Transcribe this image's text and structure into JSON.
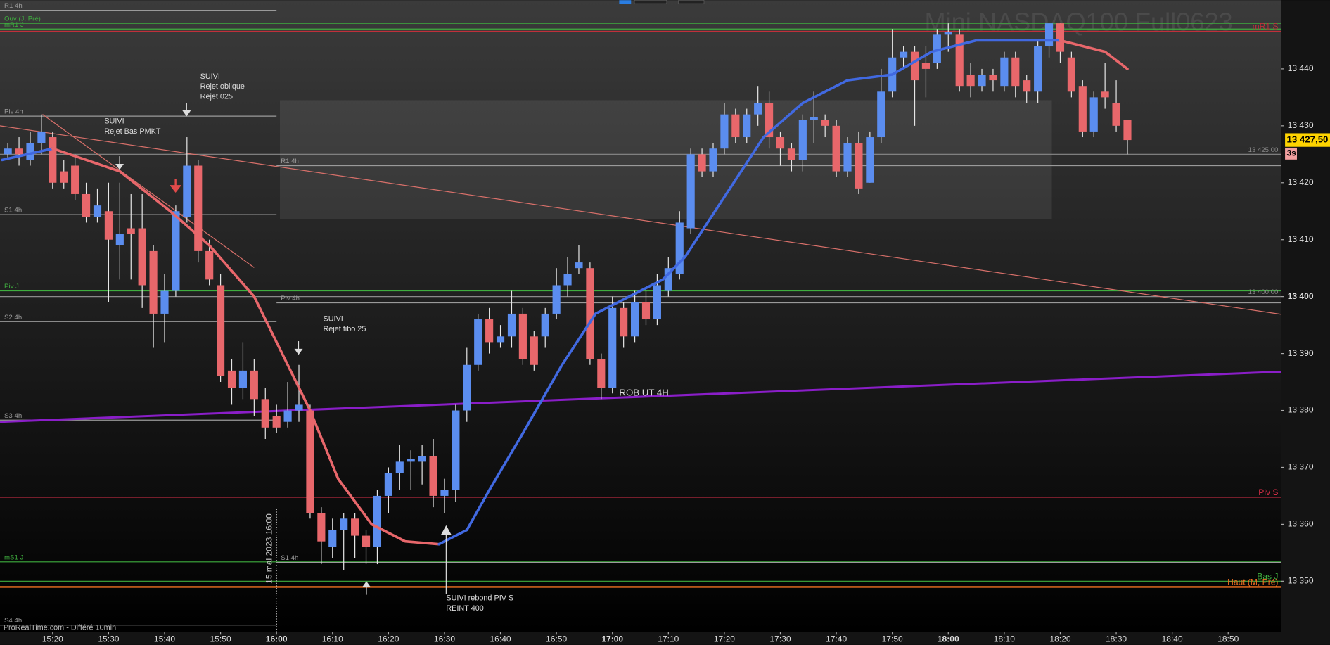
{
  "chart_data": {
    "type": "candlestick",
    "title": "Mini NASDAQ100 Full0623",
    "source": "ProRealTime.com - Différé 10min",
    "up_color": "#5b8def",
    "down_color": "#e8676b",
    "xlim": [
      910.6,
      1139.4
    ],
    "ylim": [
      13341.06,
      13452.07
    ],
    "xticks": [
      {
        "value": 920,
        "label": "15:20"
      },
      {
        "value": 930,
        "label": "15:30"
      },
      {
        "value": 940,
        "label": "15:40"
      },
      {
        "value": 950,
        "label": "15:50"
      },
      {
        "value": 960,
        "label": "16:00"
      },
      {
        "value": 970,
        "label": "16:10"
      },
      {
        "value": 980,
        "label": "16:20"
      },
      {
        "value": 990,
        "label": "16:30"
      },
      {
        "value": 1000,
        "label": "16:40"
      },
      {
        "value": 1010,
        "label": "16:50"
      },
      {
        "value": 1020,
        "label": "17:00"
      },
      {
        "value": 1030,
        "label": "17:10"
      },
      {
        "value": 1040,
        "label": "17:20"
      },
      {
        "value": 1050,
        "label": "17:30"
      },
      {
        "value": 1060,
        "label": "17:40"
      },
      {
        "value": 1070,
        "label": "17:50"
      },
      {
        "value": 1080,
        "label": "18:00"
      },
      {
        "value": 1090,
        "label": "18:10"
      },
      {
        "value": 1100,
        "label": "18:20"
      },
      {
        "value": 1110,
        "label": "18:30"
      },
      {
        "value": 1120,
        "label": "18:40"
      },
      {
        "value": 1130,
        "label": "18:50"
      }
    ],
    "yticks": [
      {
        "value": 13350,
        "label": "13 350"
      },
      {
        "value": 13360,
        "label": "13 360"
      },
      {
        "value": 13370,
        "label": "13 370"
      },
      {
        "value": 13380,
        "label": "13 380"
      },
      {
        "value": 13390,
        "label": "13 390"
      },
      {
        "value": 13400,
        "label": "13 400"
      },
      {
        "value": 13410,
        "label": "13 410"
      },
      {
        "value": 13420,
        "label": "13 420"
      },
      {
        "value": 13430,
        "label": "13 430"
      },
      {
        "value": 13440,
        "label": "13 440"
      }
    ],
    "x": [
      912,
      914,
      916,
      918,
      920,
      922,
      924,
      926,
      928,
      930,
      932,
      934,
      936,
      938,
      940,
      942,
      944,
      946,
      948,
      950,
      952,
      954,
      956,
      958,
      960,
      962,
      964,
      966,
      968,
      970,
      972,
      974,
      976,
      978,
      980,
      982,
      984,
      986,
      988,
      990,
      992,
      994,
      996,
      998,
      1000,
      1002,
      1004,
      1006,
      1008,
      1010,
      1012,
      1014,
      1016,
      1018,
      1020,
      1022,
      1024,
      1026,
      1028,
      1030,
      1032,
      1034,
      1036,
      1038,
      1040,
      1042,
      1044,
      1046,
      1048,
      1050,
      1052,
      1054,
      1056,
      1058,
      1060,
      1062,
      1064,
      1066,
      1068,
      1070,
      1072,
      1074,
      1076,
      1078,
      1080,
      1082,
      1084,
      1086,
      1088,
      1090,
      1092,
      1094,
      1096,
      1098,
      1100,
      1102,
      1104,
      1106,
      1108,
      1110,
      1112
    ],
    "open": [
      13425,
      13426,
      13424,
      13427,
      13428,
      13422,
      13423,
      13418,
      13414,
      13415,
      13409,
      13412,
      13412,
      13408,
      13397,
      13401,
      13414,
      13423,
      13408,
      13402,
      13387,
      13384,
      13387,
      13382,
      13379,
      13378,
      13380,
      13380,
      13362,
      13356,
      13359,
      13361,
      13358,
      13356,
      13365,
      13369,
      13371,
      13371,
      13372,
      13365,
      13366,
      13380,
      13388,
      13396,
      13392,
      13393,
      13397,
      13393,
      13393,
      13397,
      13402,
      13405,
      13405,
      13389,
      13384,
      13398,
      13393,
      13399,
      13396,
      13401,
      13404,
      13412,
      13425,
      13422,
      13426,
      13432,
      13428,
      13432,
      13434,
      13428,
      13426,
      13424,
      13431,
      13431,
      13430,
      13422,
      13427,
      13420,
      13428,
      13436,
      13442,
      13443,
      13441,
      13441,
      13446,
      13446,
      13439,
      13437,
      13439,
      13437,
      13442,
      13438,
      13436,
      13444,
      13448,
      13442,
      13437,
      13429,
      13436,
      13434,
      13431
    ],
    "high": [
      13427,
      13428,
      13429,
      13432,
      13429,
      13424,
      13425,
      13420,
      13419,
      13420,
      13420,
      13418,
      13418,
      13409,
      13404,
      13416,
      13428,
      13424,
      13410,
      13404,
      13389,
      13392,
      13389,
      13384,
      13381,
      13385,
      13388,
      13381,
      13363,
      13361,
      13362,
      13362,
      13359,
      13366,
      13370,
      13374,
      13373,
      13374,
      13375,
      13368,
      13381,
      13391,
      13397,
      13398,
      13395,
      13401,
      13398,
      13394,
      13398,
      13405,
      13407,
      13409,
      13406,
      13390,
      13400,
      13399,
      13401,
      13401,
      13404,
      13407,
      13415,
      13426,
      13426,
      13427,
      13434,
      13433,
      13433,
      13437,
      13436,
      13429,
      13427,
      13432,
      13436,
      13432,
      13431,
      13428,
      13429,
      13429,
      13440,
      13447,
      13444,
      13444,
      13444,
      13447,
      13448,
      13447,
      13441,
      13440,
      13440,
      13443,
      13443,
      13439,
      13445,
      13448,
      13448,
      13443,
      13438,
      13436,
      13441,
      13438,
      13431
    ],
    "low": [
      13424,
      13423,
      13423,
      13425,
      13419,
      13419,
      13417,
      13413,
      13413,
      13399,
      13403,
      13403,
      13398,
      13391,
      13392,
      13400,
      13413,
      13406,
      13402,
      13385,
      13381,
      13382,
      13379,
      13375,
      13376,
      13377,
      13378,
      13361,
      13353,
      13354,
      13352,
      13354,
      13353,
      13353,
      13362,
      13366,
      13366,
      13367,
      13363,
      13362,
      13364,
      13378,
      13387,
      13390,
      13391,
      13391,
      13388,
      13387,
      13391,
      13396,
      13400,
      13404,
      13388,
      13382,
      13383,
      13391,
      13392,
      13395,
      13395,
      13400,
      13403,
      13411,
      13421,
      13421,
      13425,
      13427,
      13427,
      13430,
      13426,
      13423,
      13422,
      13422,
      13427,
      13428,
      13421,
      13421,
      13418,
      13420,
      13427,
      13435,
      13440,
      13430,
      13435,
      13440,
      13443,
      13436,
      13435,
      13436,
      13436,
      13436,
      13435,
      13434,
      13434,
      13442,
      13441,
      13435,
      13428,
      13428,
      13433,
      13429,
      13425
    ],
    "close": [
      13426,
      13425,
      13427,
      13429,
      13420,
      13420,
      13418,
      13414,
      13416,
      13410,
      13411,
      13411,
      13402,
      13397,
      13401,
      13415,
      13423,
      13408,
      13403,
      13386,
      13384,
      13387,
      13382,
      13377,
      13377,
      13380,
      13381,
      13362,
      13357,
      13359,
      13361,
      13358,
      13356,
      13365,
      13369,
      13371,
      13371.5,
      13372,
      13365,
      13366,
      13380,
      13388,
      13396,
      13392,
      13393,
      13397,
      13389,
      13388,
      13397,
      13402,
      13404,
      13406,
      13389,
      13384,
      13398,
      13393,
      13399,
      13396,
      13402,
      13405,
      13413,
      13425,
      13422,
      13426,
      13432,
      13428,
      13432,
      13434,
      13428,
      13426,
      13424,
      13431,
      13431.5,
      13430,
      13422,
      13427,
      13419,
      13428,
      13436,
      13442,
      13443,
      13438,
      13440,
      13446,
      13446.5,
      13437,
      13437,
      13439,
      13438,
      13442,
      13437,
      13436,
      13444,
      13448,
      13443,
      13436,
      13429,
      13435,
      13435,
      13430,
      13427.5
    ],
    "moving_average": {
      "up_color": "#4169e1",
      "down_color": "#e8676b",
      "x": [
        911,
        920,
        932,
        941,
        948,
        956,
        961,
        966,
        971,
        977,
        983,
        989,
        994,
        998,
        1004,
        1011,
        1017,
        1023,
        1029,
        1033,
        1039,
        1047,
        1054,
        1062,
        1070,
        1077,
        1085,
        1092,
        1100,
        1108,
        1112
      ],
      "values": [
        13424,
        13426,
        13422,
        13415,
        13409,
        13400,
        13390,
        13380,
        13368,
        13360,
        13357,
        13356.5,
        13359,
        13366,
        13376,
        13388,
        13397,
        13400,
        13403,
        13407,
        13416,
        13428,
        13434,
        13438,
        13439,
        13443,
        13445,
        13445,
        13445,
        13443,
        13440
      ]
    },
    "levels": [
      {
        "label": "R1 4h",
        "value": 13450.3,
        "color": "#9a9a9a",
        "span": "left",
        "label_side": "left"
      },
      {
        "label": "Ouv (J, Pré)",
        "value": 13448,
        "color": "#3fae3f",
        "span": "full",
        "label_side": "left"
      },
      {
        "label": "mR1 J",
        "value": 13447,
        "color": "#3fae3f",
        "span": "full",
        "label_side": "left"
      },
      {
        "label": "mR1 S",
        "value": 13446.6,
        "color": "#c0303a",
        "span": "full",
        "label_side": "right"
      },
      {
        "label": "Piv 4h",
        "value": 13431.7,
        "color": "#9a9a9a",
        "span": "left",
        "label_side": "left"
      },
      {
        "label": "13 425,00",
        "value": 13425,
        "color": "#8a8a8a",
        "span": "full",
        "label_side": "right"
      },
      {
        "label": "R1 4h",
        "value": 13423,
        "color": "#9a9a9a",
        "span": "right",
        "label_side": "left"
      },
      {
        "label": "S1 4h",
        "value": 13414.4,
        "color": "#9a9a9a",
        "span": "left",
        "label_side": "left"
      },
      {
        "label": "Piv J",
        "value": 13401,
        "color": "#3fae3f",
        "span": "full",
        "label_side": "left"
      },
      {
        "label": "13 400,00",
        "value": 13400,
        "color": "#8a8a8a",
        "span": "full",
        "label_side": "right"
      },
      {
        "label": "Piv 4h",
        "value": 13398.9,
        "color": "#9a9a9a",
        "span": "right",
        "label_side": "left"
      },
      {
        "label": "S2 4h",
        "value": 13395.6,
        "color": "#9a9a9a",
        "span": "left",
        "label_side": "left"
      },
      {
        "label": "S3 4h",
        "value": 13378.3,
        "color": "#9a9a9a",
        "span": "left",
        "label_side": "left"
      },
      {
        "label": "Piv S",
        "value": 13364.75,
        "color": "#e0304a",
        "span": "full",
        "label_side": "right"
      },
      {
        "label": "mS1 J",
        "value": 13353.4,
        "color": "#3fae3f",
        "span": "full",
        "label_side": "left"
      },
      {
        "label": "S1 4h",
        "value": 13353.3,
        "color": "#9a9a9a",
        "span": "right",
        "label_side": "left"
      },
      {
        "label": "Bas J",
        "value": 13350,
        "color": "#3fae3f",
        "span": "full",
        "label_side": "right"
      },
      {
        "label": "Haut (M, Pré)",
        "value": 13349,
        "color": "#f07020",
        "span": "full",
        "label_side": "right"
      },
      {
        "label": "S4 4h",
        "value": 13342.3,
        "color": "#9a9a9a",
        "span": "left",
        "label_side": "left"
      }
    ],
    "trendlines": [
      {
        "x": [
          910.6,
          1139.4
        ],
        "values": [
          13378,
          13386.8
        ],
        "color": "#8a1ec8"
      },
      {
        "x": [
          910.6,
          1139.4
        ],
        "values": [
          13430,
          13396.9
        ],
        "color": "#d8706a"
      },
      {
        "x": [
          918.2,
          956
        ],
        "values": [
          13432,
          13405.1
        ],
        "color": "#d8706a"
      }
    ],
    "zones": [
      {
        "x": [
          960.6,
          1098.5
        ],
        "values": [
          13434.5,
          13413.6
        ],
        "color": "#ffffff"
      }
    ],
    "annotations": [
      {
        "lines": [
          "SUIVI",
          "Rejet oblique",
          "Rejet 025"
        ]
      },
      {
        "lines": [
          "SUIVI",
          "Rejet Bas PMKT"
        ]
      },
      {
        "lines": [
          "SUIVI",
          "Rejet fibo 25"
        ]
      },
      {
        "lines": [
          "ROB UT 4H"
        ]
      },
      {
        "lines": [
          "SUIVI rebond PIV S",
          "REINT 400"
        ]
      }
    ],
    "date_marker": {
      "value": 960,
      "label": "15 mai 2023 16:00"
    },
    "current_price": {
      "value": 13427.5,
      "label": "13 427,50"
    },
    "countdown": "3s"
  }
}
